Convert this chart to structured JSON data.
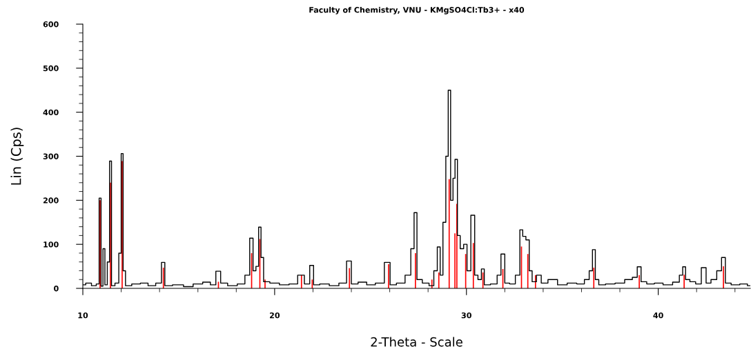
{
  "chart_data": {
    "type": "step",
    "title": "Faculty of Chemistry, VNU - KMgSO4Cl:Tb3+ - x40",
    "xlabel": "2-Theta - Scale",
    "ylabel": "Lin (Cps)",
    "xlim": [
      10,
      44.8
    ],
    "xticks": [
      10,
      20,
      30,
      40
    ],
    "ylim": [
      0,
      600
    ],
    "yticks": [
      0,
      100,
      200,
      300,
      400,
      500,
      600
    ],
    "grid": false,
    "legend": false,
    "series": [
      {
        "color": "#000000",
        "x": [
          10.0,
          10.3,
          10.6,
          10.8,
          10.9,
          11.0,
          11.1,
          11.2,
          11.35,
          11.44,
          11.55,
          11.8,
          11.95,
          12.05,
          12.15,
          12.3,
          12.8,
          13.2,
          13.6,
          14.0,
          14.2,
          14.35,
          15.0,
          15.5,
          16.0,
          16.5,
          16.8,
          17.07,
          17.3,
          17.8,
          18.3,
          18.6,
          18.8,
          18.95,
          19.1,
          19.23,
          19.35,
          19.5,
          20.0,
          20.5,
          21.0,
          21.4,
          21.7,
          21.96,
          22.1,
          22.6,
          23.1,
          23.6,
          23.9,
          24.1,
          24.6,
          25.0,
          25.5,
          25.94,
          26.1,
          26.6,
          27.0,
          27.2,
          27.34,
          27.5,
          27.9,
          28.2,
          28.4,
          28.56,
          28.7,
          28.85,
          29.0,
          29.1,
          29.25,
          29.35,
          29.46,
          29.6,
          29.75,
          29.96,
          30.1,
          30.36,
          30.5,
          30.7,
          30.86,
          31.0,
          31.5,
          31.7,
          31.9,
          32.1,
          32.4,
          32.7,
          32.87,
          33.0,
          33.2,
          33.35,
          33.5,
          33.8,
          34.0,
          34.5,
          35.0,
          35.5,
          36.0,
          36.3,
          36.5,
          36.64,
          36.8,
          37.0,
          37.5,
          38.0,
          38.5,
          38.8,
          39.01,
          39.2,
          39.6,
          40.0,
          40.5,
          41.0,
          41.2,
          41.35,
          41.5,
          41.8,
          42.1,
          42.39,
          42.6,
          42.9,
          43.2,
          43.4,
          43.6,
          44.0,
          44.5,
          44.8
        ],
        "values": [
          8,
          12,
          6,
          10,
          205,
          5,
          90,
          8,
          60,
          289,
          6,
          12,
          80,
          306,
          40,
          6,
          10,
          12,
          6,
          12,
          59,
          6,
          8,
          4,
          10,
          14,
          8,
          39,
          12,
          6,
          10,
          30,
          114,
          40,
          50,
          139,
          70,
          15,
          12,
          8,
          10,
          30,
          10,
          52,
          8,
          10,
          6,
          12,
          62,
          10,
          14,
          8,
          12,
          59,
          8,
          12,
          30,
          90,
          172,
          20,
          12,
          6,
          40,
          94,
          30,
          150,
          300,
          450,
          200,
          250,
          293,
          120,
          90,
          100,
          40,
          166,
          30,
          20,
          44,
          8,
          10,
          30,
          78,
          12,
          10,
          30,
          133,
          118,
          110,
          40,
          15,
          30,
          12,
          20,
          8,
          12,
          10,
          20,
          40,
          88,
          20,
          8,
          10,
          12,
          20,
          25,
          49,
          15,
          10,
          12,
          8,
          14,
          30,
          49,
          20,
          15,
          10,
          47,
          12,
          20,
          40,
          70,
          12,
          8,
          10,
          6
        ]
      },
      {
        "type": "bar",
        "color": "#ff0000",
        "x": [
          10.9,
          11.44,
          12.05,
          14.2,
          17.07,
          18.8,
          19.23,
          19.5,
          21.4,
          21.96,
          23.9,
          25.94,
          27.34,
          28.2,
          28.56,
          29.1,
          29.4,
          29.5,
          29.96,
          30.36,
          30.86,
          31.9,
          32.87,
          33.2,
          33.6,
          36.64,
          39.01,
          41.35,
          43.4
        ],
        "values": [
          200,
          240,
          289,
          47,
          15,
          80,
          112,
          20,
          30,
          20,
          46,
          55,
          80,
          20,
          36,
          248,
          125,
          192,
          78,
          103,
          36,
          44,
          95,
          78,
          30,
          47,
          30,
          31,
          50
        ]
      }
    ]
  }
}
